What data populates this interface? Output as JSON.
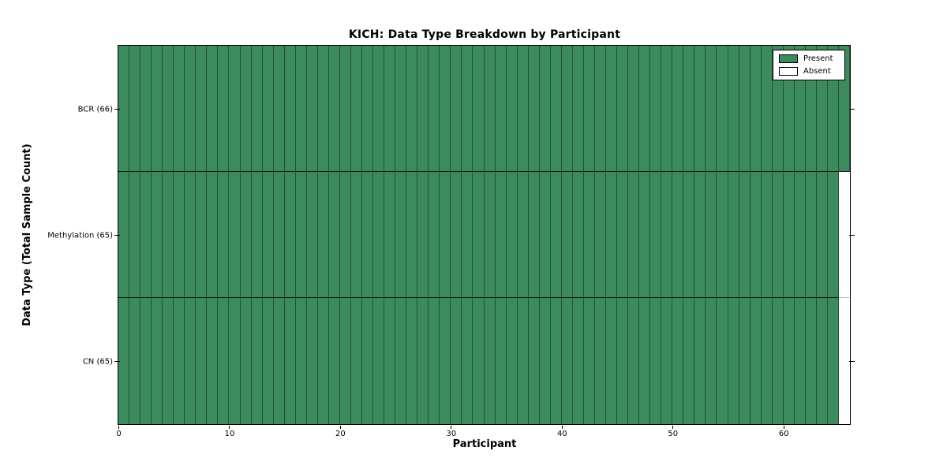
{
  "chart_data": {
    "type": "heatmap",
    "title": "KICH: Data Type Breakdown by Participant",
    "xlabel": "Participant",
    "ylabel": "Data Type (Total Sample Count)",
    "x_range": [
      0,
      66
    ],
    "x_ticks": [
      0,
      10,
      20,
      30,
      40,
      50,
      60
    ],
    "n_participants": 66,
    "grid": false,
    "rows": [
      {
        "label": "BCR (66)",
        "data_type": "BCR",
        "total_sample_count": 66,
        "present_count": 66,
        "absent_count": 0,
        "absent_participant_indices": []
      },
      {
        "label": "Methylation (65)",
        "data_type": "Methylation",
        "total_sample_count": 65,
        "present_count": 65,
        "absent_count": 1,
        "absent_participant_indices": [
          65
        ]
      },
      {
        "label": "CN (65)",
        "data_type": "CN",
        "total_sample_count": 65,
        "present_count": 65,
        "absent_count": 1,
        "absent_participant_indices": [
          65
        ]
      }
    ],
    "legend": {
      "position": "upper-right",
      "entries": [
        {
          "label": "Present",
          "color": "#3c8b5c"
        },
        {
          "label": "Absent",
          "color": "#ffffff"
        }
      ]
    },
    "colors": {
      "present": "#3c8b5c",
      "absent": "#ffffff",
      "cell_edge": "#235037",
      "axis": "#000000"
    }
  }
}
